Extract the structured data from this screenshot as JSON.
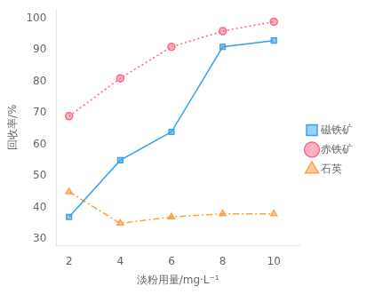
{
  "chart_data": {
    "type": "line",
    "x": [
      2,
      4,
      6,
      8,
      10
    ],
    "series": [
      {
        "name": "磁铁矿",
        "values": [
          37,
          55,
          64,
          91,
          93
        ],
        "marker": "square",
        "line_style": "solid"
      },
      {
        "name": "赤铁矿",
        "values": [
          69,
          81,
          91,
          96,
          99
        ],
        "marker": "circle",
        "line_style": "dotted"
      },
      {
        "name": "石英",
        "values": [
          45,
          35,
          37,
          38,
          38
        ],
        "marker": "triangle",
        "line_style": "dashdot"
      }
    ],
    "xlabel": "淡粉用量/mg·L⁻¹",
    "ylabel": "回收率/%",
    "xlim": [
      1.5,
      11
    ],
    "ylim": [
      28,
      103
    ],
    "xticks": [
      2,
      4,
      6,
      8,
      10
    ],
    "yticks": [
      30,
      40,
      50,
      60,
      70,
      80,
      90,
      100
    ],
    "grid": false,
    "legend": "right"
  }
}
